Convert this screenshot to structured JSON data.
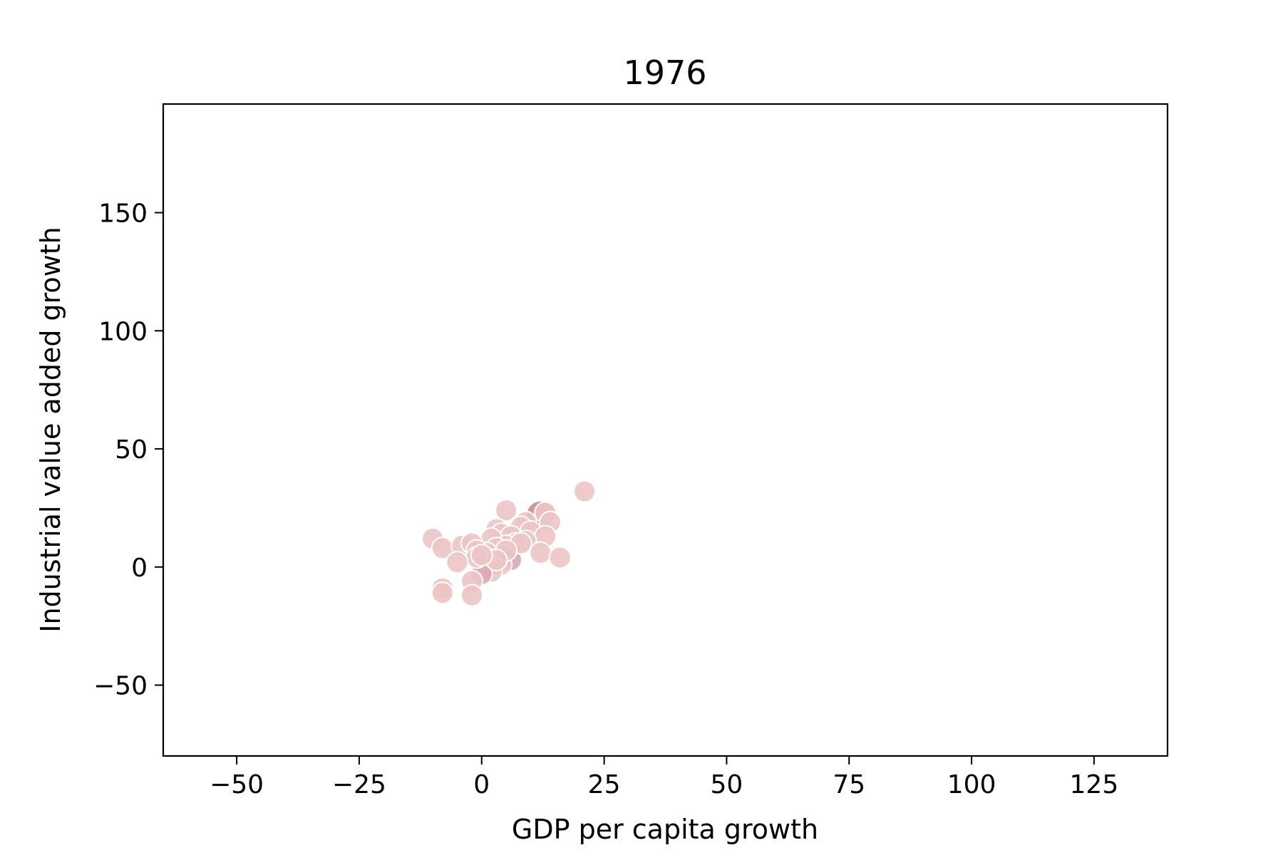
{
  "chart_data": {
    "type": "scatter",
    "title": "1976",
    "xlabel": "GDP per capita growth",
    "ylabel": "Industrial value added growth",
    "xlim": [
      -65,
      140
    ],
    "ylim": [
      -80,
      196
    ],
    "xticks": [
      -50,
      -25,
      0,
      25,
      50,
      75,
      100,
      125
    ],
    "yticks": [
      -50,
      0,
      50,
      100,
      150
    ],
    "grid": false,
    "legend": "none",
    "colors": {
      "light": "#ecc4c4",
      "medium": "#dcaab4",
      "dark": "#cc8c9c",
      "edge": "#ffffff"
    },
    "points": [
      {
        "x": 21,
        "y": 32,
        "tone": "light"
      },
      {
        "x": 12,
        "y": 22,
        "tone": "dark"
      },
      {
        "x": 13,
        "y": 23,
        "tone": "light"
      },
      {
        "x": 14,
        "y": 19,
        "tone": "light"
      },
      {
        "x": 5,
        "y": 24,
        "tone": "light"
      },
      {
        "x": 9,
        "y": 19,
        "tone": "light"
      },
      {
        "x": 8,
        "y": 17,
        "tone": "light"
      },
      {
        "x": 10,
        "y": 15,
        "tone": "light"
      },
      {
        "x": 13,
        "y": 13,
        "tone": "light"
      },
      {
        "x": 3,
        "y": 16,
        "tone": "light"
      },
      {
        "x": 4,
        "y": 14,
        "tone": "light"
      },
      {
        "x": 6,
        "y": 13,
        "tone": "light"
      },
      {
        "x": 2,
        "y": 12,
        "tone": "light"
      },
      {
        "x": 9,
        "y": 11,
        "tone": "light"
      },
      {
        "x": 7,
        "y": 10,
        "tone": "light"
      },
      {
        "x": 5,
        "y": 9,
        "tone": "light"
      },
      {
        "x": 3,
        "y": 8,
        "tone": "light"
      },
      {
        "x": 1,
        "y": 6,
        "tone": "light"
      },
      {
        "x": 6,
        "y": 6,
        "tone": "medium"
      },
      {
        "x": 5,
        "y": 5,
        "tone": "light"
      },
      {
        "x": 4,
        "y": 4,
        "tone": "medium"
      },
      {
        "x": 6,
        "y": 3,
        "tone": "medium"
      },
      {
        "x": 2,
        "y": 3,
        "tone": "light"
      },
      {
        "x": 3,
        "y": 2,
        "tone": "light"
      },
      {
        "x": 4,
        "y": 1,
        "tone": "light"
      },
      {
        "x": 1,
        "y": 0,
        "tone": "medium"
      },
      {
        "x": 0,
        "y": 1,
        "tone": "light"
      },
      {
        "x": 2,
        "y": -2,
        "tone": "light"
      },
      {
        "x": 0,
        "y": -3,
        "tone": "medium"
      },
      {
        "x": 8,
        "y": 10,
        "tone": "light"
      },
      {
        "x": 5,
        "y": 7,
        "tone": "light"
      },
      {
        "x": 3,
        "y": 3,
        "tone": "light"
      },
      {
        "x": 12,
        "y": 6,
        "tone": "light"
      },
      {
        "x": 16,
        "y": 4,
        "tone": "light"
      },
      {
        "x": -10,
        "y": 12,
        "tone": "light"
      },
      {
        "x": -8,
        "y": 8,
        "tone": "light"
      },
      {
        "x": -4,
        "y": 9,
        "tone": "light"
      },
      {
        "x": -2,
        "y": 10,
        "tone": "light"
      },
      {
        "x": -1,
        "y": 7,
        "tone": "light"
      },
      {
        "x": -1,
        "y": 4,
        "tone": "light"
      },
      {
        "x": -5,
        "y": 2,
        "tone": "light"
      },
      {
        "x": -2,
        "y": -6,
        "tone": "light"
      },
      {
        "x": -8,
        "y": -9,
        "tone": "light"
      },
      {
        "x": -8,
        "y": -11,
        "tone": "light"
      },
      {
        "x": -2,
        "y": -12,
        "tone": "light"
      },
      {
        "x": 0,
        "y": 5,
        "tone": "light"
      }
    ]
  }
}
